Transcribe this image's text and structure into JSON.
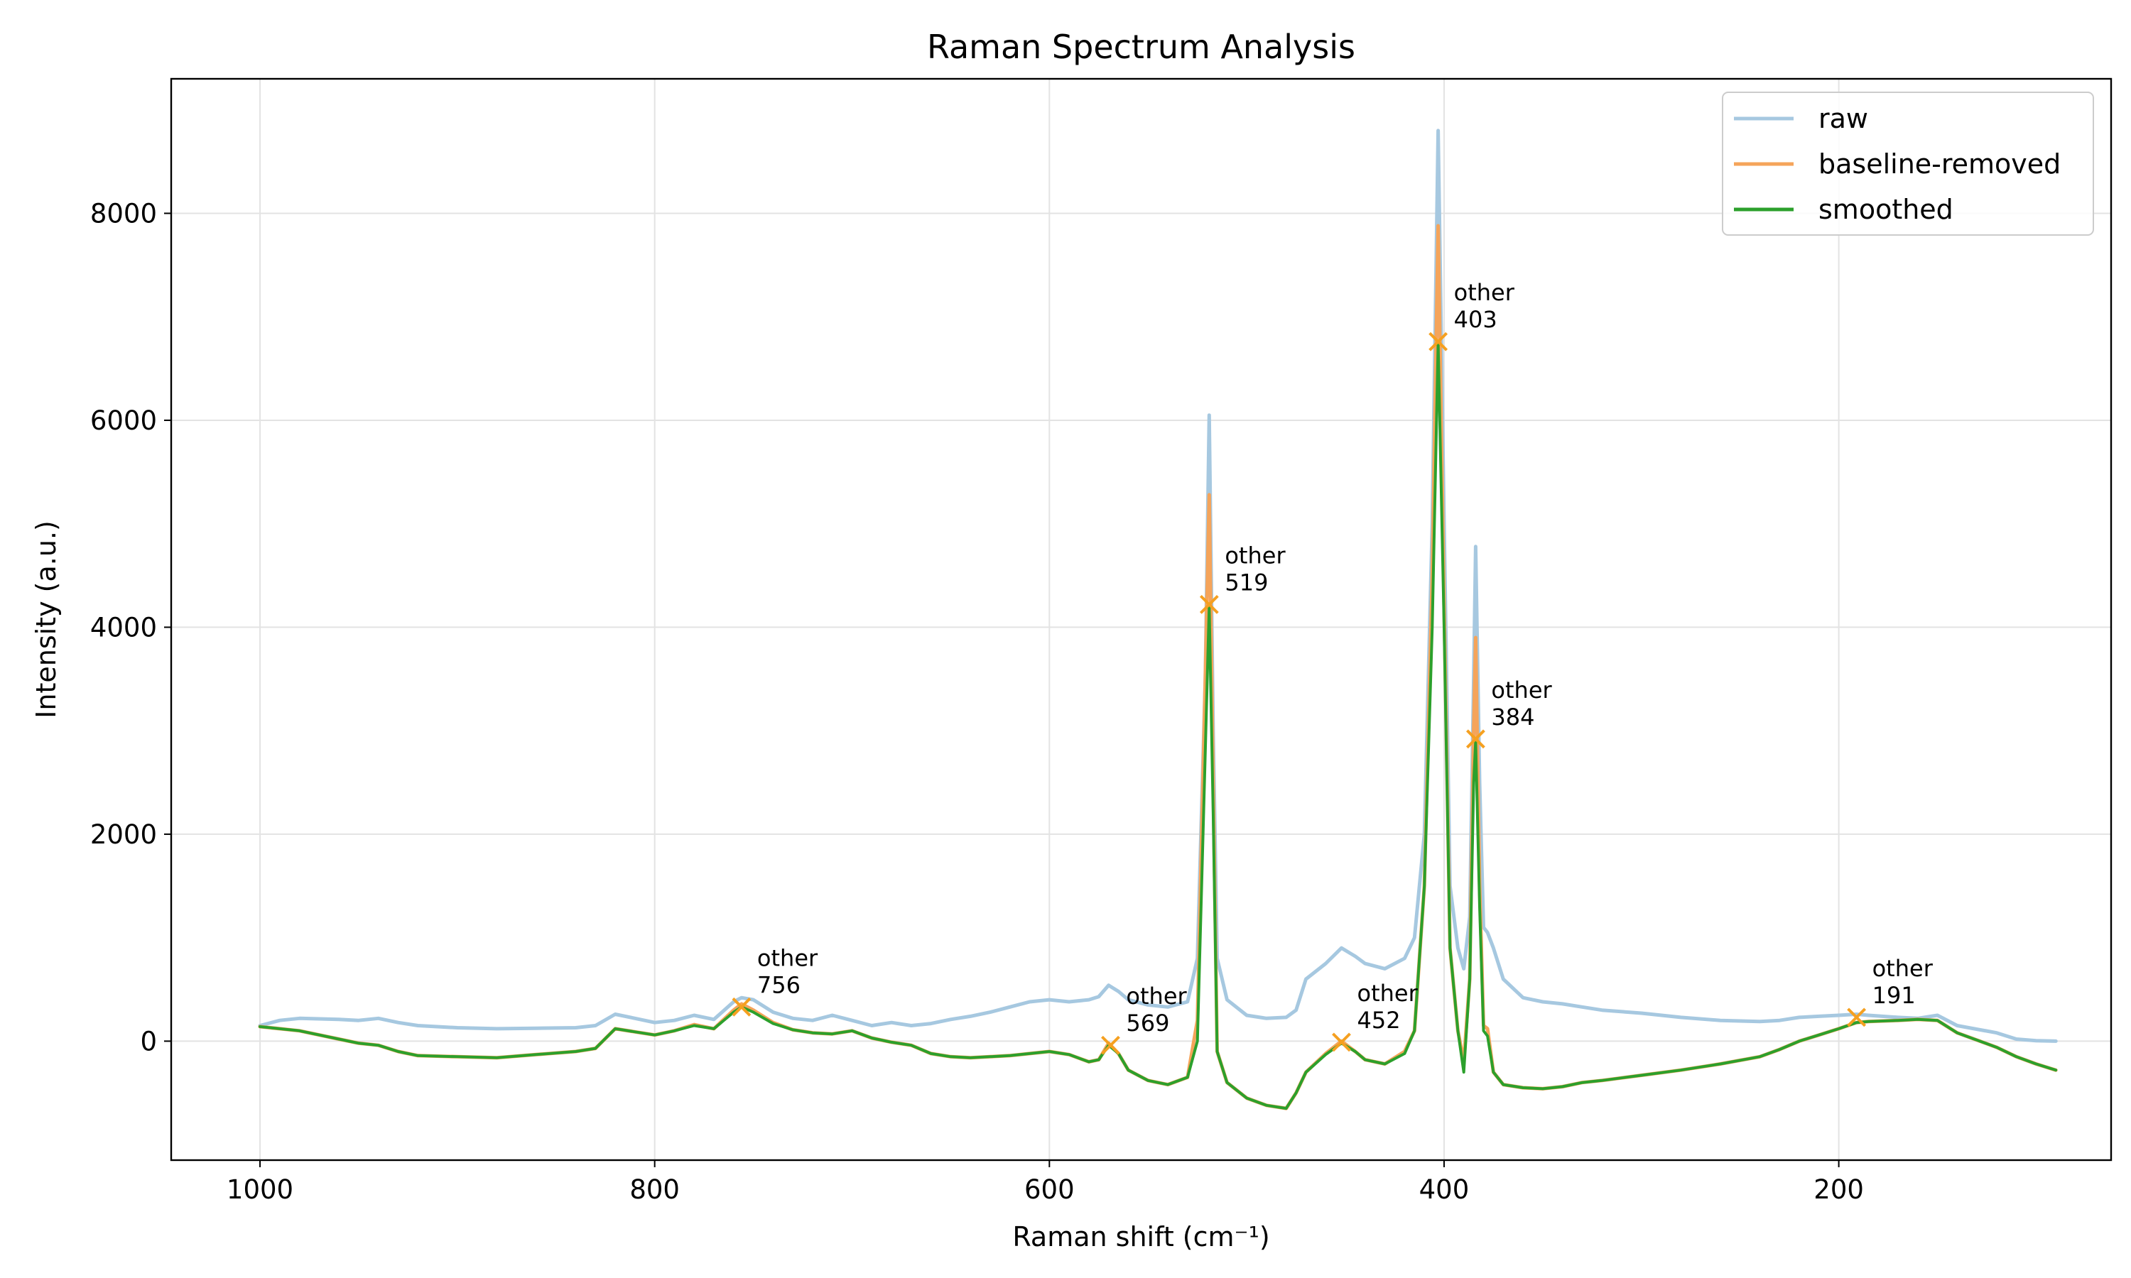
{
  "chart_data": {
    "type": "line",
    "title": "Raman Spectrum Analysis",
    "xlabel": "Raman shift (cm⁻¹)",
    "ylabel": "Intensity (a.u.)",
    "xlim": [
      1045,
      62
    ],
    "ylim": [
      -1150,
      9300
    ],
    "x_inverted": true,
    "grid": true,
    "legend_position": "top-right",
    "x_ticks": [
      1000,
      800,
      600,
      400,
      200
    ],
    "y_ticks": [
      0,
      2000,
      4000,
      6000,
      8000
    ],
    "series": [
      {
        "name": "raw",
        "color": "#a6c8e0",
        "points": [
          [
            1000,
            150
          ],
          [
            990,
            200
          ],
          [
            980,
            220
          ],
          [
            960,
            210
          ],
          [
            950,
            200
          ],
          [
            940,
            220
          ],
          [
            930,
            180
          ],
          [
            920,
            150
          ],
          [
            900,
            130
          ],
          [
            880,
            120
          ],
          [
            860,
            125
          ],
          [
            840,
            130
          ],
          [
            830,
            150
          ],
          [
            820,
            260
          ],
          [
            810,
            220
          ],
          [
            800,
            180
          ],
          [
            790,
            200
          ],
          [
            780,
            250
          ],
          [
            770,
            210
          ],
          [
            760,
            380
          ],
          [
            756,
            420
          ],
          [
            750,
            400
          ],
          [
            740,
            280
          ],
          [
            730,
            220
          ],
          [
            720,
            200
          ],
          [
            710,
            250
          ],
          [
            700,
            200
          ],
          [
            690,
            150
          ],
          [
            680,
            180
          ],
          [
            670,
            150
          ],
          [
            660,
            170
          ],
          [
            650,
            210
          ],
          [
            640,
            240
          ],
          [
            630,
            280
          ],
          [
            620,
            330
          ],
          [
            610,
            380
          ],
          [
            600,
            400
          ],
          [
            590,
            380
          ],
          [
            580,
            400
          ],
          [
            575,
            430
          ],
          [
            570,
            540
          ],
          [
            565,
            480
          ],
          [
            560,
            400
          ],
          [
            550,
            350
          ],
          [
            540,
            330
          ],
          [
            530,
            380
          ],
          [
            525,
            800
          ],
          [
            521,
            3500
          ],
          [
            519,
            6050
          ],
          [
            517,
            3000
          ],
          [
            515,
            800
          ],
          [
            510,
            400
          ],
          [
            500,
            250
          ],
          [
            490,
            220
          ],
          [
            480,
            230
          ],
          [
            475,
            300
          ],
          [
            470,
            600
          ],
          [
            460,
            750
          ],
          [
            452,
            900
          ],
          [
            445,
            820
          ],
          [
            440,
            750
          ],
          [
            430,
            700
          ],
          [
            420,
            800
          ],
          [
            415,
            1000
          ],
          [
            410,
            2000
          ],
          [
            406,
            5000
          ],
          [
            403,
            8800
          ],
          [
            400,
            5000
          ],
          [
            397,
            1500
          ],
          [
            393,
            900
          ],
          [
            390,
            700
          ],
          [
            387,
            1200
          ],
          [
            385,
            3500
          ],
          [
            384,
            4780
          ],
          [
            382,
            2500
          ],
          [
            380,
            1100
          ],
          [
            378,
            1050
          ],
          [
            375,
            900
          ],
          [
            370,
            600
          ],
          [
            360,
            420
          ],
          [
            350,
            380
          ],
          [
            340,
            360
          ],
          [
            330,
            330
          ],
          [
            320,
            300
          ],
          [
            300,
            270
          ],
          [
            280,
            230
          ],
          [
            260,
            200
          ],
          [
            240,
            190
          ],
          [
            230,
            200
          ],
          [
            220,
            230
          ],
          [
            210,
            240
          ],
          [
            200,
            250
          ],
          [
            191,
            260
          ],
          [
            185,
            250
          ],
          [
            170,
            230
          ],
          [
            160,
            220
          ],
          [
            150,
            250
          ],
          [
            140,
            150
          ],
          [
            120,
            80
          ],
          [
            110,
            20
          ],
          [
            100,
            5
          ],
          [
            90,
            0
          ]
        ]
      },
      {
        "name": "baseline-removed",
        "color": "#f5a45a",
        "points": [
          [
            1000,
            140
          ],
          [
            990,
            120
          ],
          [
            980,
            100
          ],
          [
            960,
            20
          ],
          [
            950,
            -20
          ],
          [
            940,
            -40
          ],
          [
            930,
            -100
          ],
          [
            920,
            -140
          ],
          [
            900,
            -150
          ],
          [
            880,
            -160
          ],
          [
            860,
            -130
          ],
          [
            840,
            -100
          ],
          [
            830,
            -70
          ],
          [
            820,
            120
          ],
          [
            810,
            90
          ],
          [
            800,
            60
          ],
          [
            790,
            100
          ],
          [
            780,
            160
          ],
          [
            770,
            120
          ],
          [
            760,
            300
          ],
          [
            756,
            360
          ],
          [
            750,
            300
          ],
          [
            740,
            180
          ],
          [
            730,
            110
          ],
          [
            720,
            80
          ],
          [
            710,
            70
          ],
          [
            700,
            100
          ],
          [
            690,
            30
          ],
          [
            680,
            -10
          ],
          [
            670,
            -40
          ],
          [
            660,
            -120
          ],
          [
            650,
            -150
          ],
          [
            640,
            -160
          ],
          [
            630,
            -150
          ],
          [
            620,
            -140
          ],
          [
            610,
            -120
          ],
          [
            600,
            -100
          ],
          [
            590,
            -130
          ],
          [
            580,
            -200
          ],
          [
            575,
            -180
          ],
          [
            570,
            -20
          ],
          [
            565,
            -120
          ],
          [
            560,
            -280
          ],
          [
            550,
            -380
          ],
          [
            540,
            -420
          ],
          [
            530,
            -350
          ],
          [
            525,
            200
          ],
          [
            521,
            3500
          ],
          [
            519,
            5280
          ],
          [
            517,
            2500
          ],
          [
            515,
            -100
          ],
          [
            510,
            -400
          ],
          [
            500,
            -550
          ],
          [
            490,
            -620
          ],
          [
            480,
            -650
          ],
          [
            475,
            -500
          ],
          [
            470,
            -300
          ],
          [
            460,
            -120
          ],
          [
            452,
            0
          ],
          [
            445,
            -100
          ],
          [
            440,
            -180
          ],
          [
            430,
            -220
          ],
          [
            420,
            -100
          ],
          [
            415,
            100
          ],
          [
            410,
            1500
          ],
          [
            406,
            4500
          ],
          [
            403,
            7880
          ],
          [
            400,
            4200
          ],
          [
            397,
            900
          ],
          [
            393,
            100
          ],
          [
            390,
            -200
          ],
          [
            387,
            600
          ],
          [
            385,
            3000
          ],
          [
            384,
            3900
          ],
          [
            382,
            1500
          ],
          [
            380,
            150
          ],
          [
            378,
            120
          ],
          [
            375,
            -300
          ],
          [
            370,
            -420
          ],
          [
            360,
            -450
          ],
          [
            350,
            -460
          ],
          [
            340,
            -440
          ],
          [
            330,
            -400
          ],
          [
            320,
            -380
          ],
          [
            300,
            -330
          ],
          [
            280,
            -280
          ],
          [
            260,
            -220
          ],
          [
            240,
            -150
          ],
          [
            230,
            -80
          ],
          [
            220,
            0
          ],
          [
            210,
            60
          ],
          [
            200,
            120
          ],
          [
            191,
            180
          ],
          [
            185,
            190
          ],
          [
            170,
            200
          ],
          [
            160,
            210
          ],
          [
            150,
            200
          ],
          [
            140,
            80
          ],
          [
            120,
            -60
          ],
          [
            110,
            -150
          ],
          [
            100,
            -220
          ],
          [
            90,
            -280
          ]
        ]
      },
      {
        "name": "smoothed",
        "color": "#2ca02c",
        "points": [
          [
            1000,
            140
          ],
          [
            990,
            120
          ],
          [
            980,
            100
          ],
          [
            960,
            20
          ],
          [
            950,
            -20
          ],
          [
            940,
            -40
          ],
          [
            930,
            -100
          ],
          [
            920,
            -140
          ],
          [
            900,
            -150
          ],
          [
            880,
            -160
          ],
          [
            860,
            -130
          ],
          [
            840,
            -100
          ],
          [
            830,
            -70
          ],
          [
            820,
            120
          ],
          [
            810,
            90
          ],
          [
            800,
            60
          ],
          [
            790,
            100
          ],
          [
            780,
            150
          ],
          [
            770,
            120
          ],
          [
            760,
            280
          ],
          [
            756,
            330
          ],
          [
            750,
            280
          ],
          [
            740,
            170
          ],
          [
            730,
            110
          ],
          [
            720,
            80
          ],
          [
            710,
            70
          ],
          [
            700,
            100
          ],
          [
            690,
            30
          ],
          [
            680,
            -10
          ],
          [
            670,
            -40
          ],
          [
            660,
            -120
          ],
          [
            650,
            -150
          ],
          [
            640,
            -160
          ],
          [
            630,
            -150
          ],
          [
            620,
            -140
          ],
          [
            610,
            -120
          ],
          [
            600,
            -100
          ],
          [
            590,
            -130
          ],
          [
            580,
            -200
          ],
          [
            575,
            -180
          ],
          [
            570,
            -40
          ],
          [
            565,
            -120
          ],
          [
            560,
            -280
          ],
          [
            550,
            -380
          ],
          [
            540,
            -420
          ],
          [
            530,
            -350
          ],
          [
            525,
            0
          ],
          [
            521,
            2800
          ],
          [
            519,
            4200
          ],
          [
            517,
            2200
          ],
          [
            515,
            -100
          ],
          [
            510,
            -400
          ],
          [
            500,
            -550
          ],
          [
            490,
            -620
          ],
          [
            480,
            -650
          ],
          [
            475,
            -500
          ],
          [
            470,
            -300
          ],
          [
            460,
            -130
          ],
          [
            452,
            -20
          ],
          [
            445,
            -100
          ],
          [
            440,
            -180
          ],
          [
            430,
            -220
          ],
          [
            420,
            -120
          ],
          [
            415,
            100
          ],
          [
            410,
            1500
          ],
          [
            406,
            4000
          ],
          [
            403,
            6750
          ],
          [
            400,
            4000
          ],
          [
            397,
            900
          ],
          [
            393,
            100
          ],
          [
            390,
            -300
          ],
          [
            387,
            600
          ],
          [
            385,
            2500
          ],
          [
            384,
            2900
          ],
          [
            382,
            1300
          ],
          [
            380,
            100
          ],
          [
            378,
            50
          ],
          [
            375,
            -300
          ],
          [
            370,
            -420
          ],
          [
            360,
            -450
          ],
          [
            350,
            -460
          ],
          [
            340,
            -440
          ],
          [
            330,
            -400
          ],
          [
            320,
            -380
          ],
          [
            300,
            -330
          ],
          [
            280,
            -280
          ],
          [
            260,
            -220
          ],
          [
            240,
            -150
          ],
          [
            230,
            -80
          ],
          [
            220,
            0
          ],
          [
            210,
            60
          ],
          [
            200,
            120
          ],
          [
            191,
            180
          ],
          [
            185,
            190
          ],
          [
            170,
            200
          ],
          [
            160,
            210
          ],
          [
            150,
            200
          ],
          [
            140,
            80
          ],
          [
            120,
            -60
          ],
          [
            110,
            -150
          ],
          [
            100,
            -220
          ],
          [
            90,
            -280
          ]
        ]
      }
    ],
    "peaks": [
      {
        "x": 756,
        "y": 330,
        "label1": "other",
        "label2": "756"
      },
      {
        "x": 569,
        "y": -40,
        "label1": "other",
        "label2": "569"
      },
      {
        "x": 519,
        "y": 4220,
        "label1": "other",
        "label2": "519"
      },
      {
        "x": 452,
        "y": -10,
        "label1": "other",
        "label2": "452"
      },
      {
        "x": 403,
        "y": 6760,
        "label1": "other",
        "label2": "403"
      },
      {
        "x": 384,
        "y": 2920,
        "label1": "other",
        "label2": "384"
      },
      {
        "x": 191,
        "y": 230,
        "label1": "other",
        "label2": "191"
      }
    ],
    "peak_marker_color": "#f5a020"
  }
}
